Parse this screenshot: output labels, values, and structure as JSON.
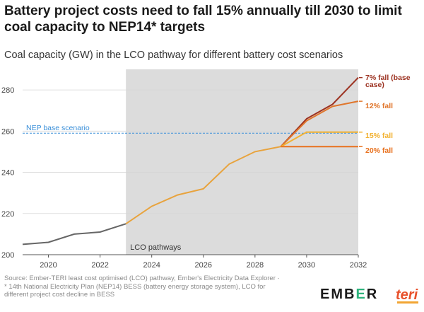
{
  "title": "Battery project costs need to fall 15% annually till 2030 to limit coal capacity to NEP14* targets",
  "subtitle": "Coal capacity (GW) in the LCO pathway for different battery cost scenarios",
  "source": "Source: Ember-TERI least cost optimised (LCO) pathway, Ember's Electricity Data Explorer · * 14th National Electricity Plan (NEP14) BESS (battery energy storage system), LCO for different project cost decline in BESS",
  "logos": {
    "ember_prefix": "EMB",
    "ember_accent": "E",
    "ember_suffix": "R",
    "teri": "teri"
  },
  "colors": {
    "historical": "#666666",
    "lco": "#e8a33d",
    "nep": "#3a8fd9",
    "shade": "#dcdcdc",
    "fall7": "#9c3221",
    "fall12": "#e0762c",
    "fall15": "#f2b233",
    "fall20": "#e8711e"
  },
  "chart_data": {
    "type": "line",
    "xlim": [
      2019,
      2032
    ],
    "ylim": [
      200,
      290
    ],
    "xticks": [
      2020,
      2022,
      2024,
      2026,
      2028,
      2030,
      2032
    ],
    "yticks": [
      200,
      220,
      240,
      260,
      280
    ],
    "grid": "horizontal",
    "shaded_region": {
      "x_start": 2023,
      "x_end": 2032,
      "label": "LCO pathways"
    },
    "reference_line": {
      "y": 259,
      "label": "NEP base scenario"
    },
    "historical": {
      "x": [
        2019,
        2020,
        2021,
        2022,
        2023
      ],
      "y": [
        205,
        206,
        210,
        211,
        215
      ]
    },
    "lco_pathway": {
      "x": [
        2023,
        2024,
        2025,
        2026,
        2027,
        2028,
        2029
      ],
      "y": [
        215,
        223.5,
        229,
        232,
        244,
        250,
        252.5
      ]
    },
    "series": [
      {
        "name": "7% fall (base case)",
        "color_key": "fall7",
        "x": [
          2029,
          2030,
          2031,
          2032
        ],
        "y": [
          252.5,
          266,
          273,
          286
        ]
      },
      {
        "name": "12% fall",
        "color_key": "fall12",
        "x": [
          2029,
          2030,
          2031,
          2032
        ],
        "y": [
          252.5,
          265,
          272,
          274.5
        ]
      },
      {
        "name": "15% fall",
        "color_key": "fall15",
        "x": [
          2029,
          2030,
          2031,
          2032
        ],
        "y": [
          252.5,
          259.5,
          259.5,
          259.5
        ]
      },
      {
        "name": "20% fall",
        "color_key": "fall20",
        "x": [
          2029,
          2030,
          2031,
          2032
        ],
        "y": [
          252.5,
          252.5,
          252.5,
          252.5
        ]
      }
    ]
  }
}
